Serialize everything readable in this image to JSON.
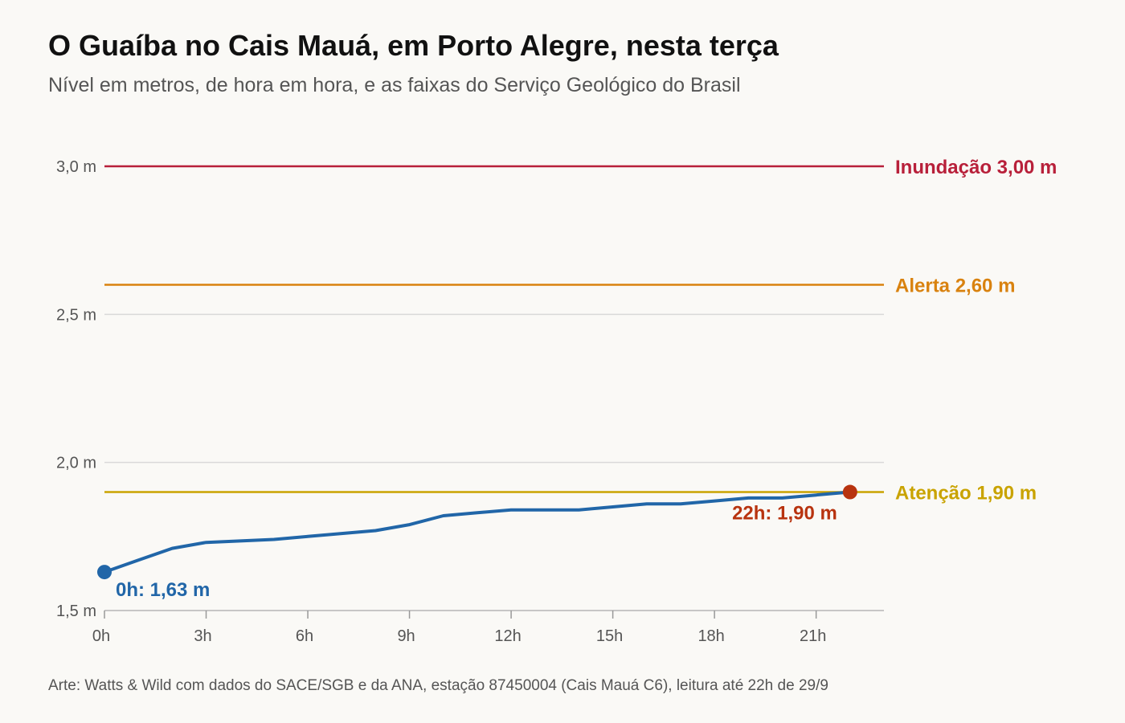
{
  "header": {
    "title": "O Guaíba no Cais Mauá, em Porto Alegre, nesta terça",
    "subtitle": "Nível em metros, de hora em hora, e as faixas do Serviço Geológico do Brasil"
  },
  "footer": {
    "source": "Arte: Watts & Wild com dados do SACE/SGB e da ANA, estação 87450004 (Cais Mauá C6), leitura até 22h de 29/9"
  },
  "colors": {
    "series": "#2166a8",
    "last_point": "#b8330f",
    "inundacao": "#b8203a",
    "alerta": "#d9820f",
    "atencao": "#c9a300",
    "grid": "#d9d9d9"
  },
  "chart_data": {
    "type": "line",
    "title": "O Guaíba no Cais Mauá, em Porto Alegre, nesta terça",
    "subtitle": "Nível em metros, de hora em hora, e as faixas do Serviço Geológico do Brasil",
    "xlabel": "",
    "ylabel": "",
    "x": [
      0,
      1,
      2,
      3,
      4,
      5,
      6,
      7,
      8,
      9,
      10,
      11,
      12,
      13,
      14,
      15,
      16,
      17,
      18,
      19,
      20,
      21,
      22
    ],
    "series": [
      {
        "values": [
          1.63,
          1.67,
          1.71,
          1.73,
          1.735,
          1.74,
          1.75,
          1.76,
          1.77,
          1.79,
          1.82,
          1.83,
          1.84,
          1.84,
          1.84,
          1.85,
          1.86,
          1.86,
          1.87,
          1.88,
          1.88,
          1.89,
          1.9
        ]
      }
    ],
    "xlim": [
      0,
      23
    ],
    "ylim": [
      1.5,
      3.0
    ],
    "x_ticks": [
      0,
      3,
      6,
      9,
      12,
      15,
      18,
      21
    ],
    "x_tick_labels": [
      "0h",
      "3h",
      "6h",
      "9h",
      "12h",
      "15h",
      "18h",
      "21h"
    ],
    "y_ticks": [
      1.5,
      2.0,
      2.5,
      3.0
    ],
    "y_tick_labels": [
      "1,5 m",
      "2,0 m",
      "2,5 m",
      "3,0 m"
    ],
    "grid": true,
    "thresholds": [
      {
        "key": "inundacao",
        "value": 3.0,
        "label": "Inundação 3,00 m"
      },
      {
        "key": "alerta",
        "value": 2.6,
        "label": "Alerta 2,60 m"
      },
      {
        "key": "atencao",
        "value": 1.9,
        "label": "Atenção 1,90 m"
      }
    ],
    "annotations": [
      {
        "key": "first",
        "x": 0,
        "y": 1.63,
        "label": "0h: 1,63 m"
      },
      {
        "key": "last",
        "x": 22,
        "y": 1.9,
        "label": "22h: 1,90 m"
      }
    ]
  }
}
